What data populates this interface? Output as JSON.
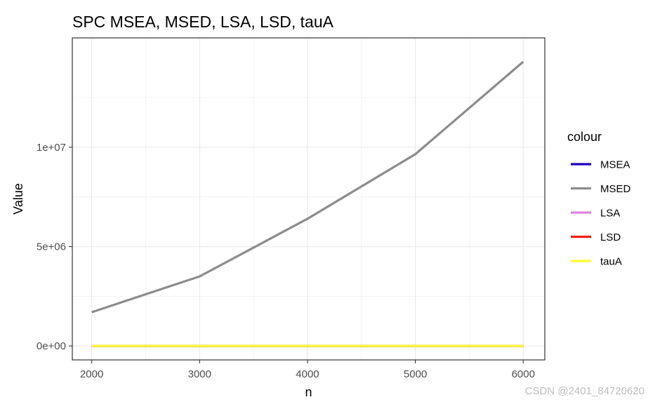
{
  "chart_data": {
    "type": "line",
    "title": "SPC MSEA, MSED, LSA, LSD, tauA",
    "xlabel": "n",
    "ylabel": "Value",
    "x": [
      2000,
      3000,
      4000,
      5000,
      6000
    ],
    "xlim": [
      1820,
      6200
    ],
    "ylim": [
      -700000,
      15500000
    ],
    "x_ticks": [
      2000,
      3000,
      4000,
      5000,
      6000
    ],
    "x_tick_labels": [
      "2000",
      "3000",
      "4000",
      "5000",
      "6000"
    ],
    "y_ticks": [
      0,
      5000000,
      10000000
    ],
    "y_tick_labels": [
      "0e+00",
      "5e+06",
      "1e+07"
    ],
    "grid": true,
    "legend_title": "colour",
    "legend_position": "right",
    "series": [
      {
        "name": "MSEA",
        "color": "#1c00bd",
        "values": [
          0,
          0,
          0,
          0,
          0
        ]
      },
      {
        "name": "MSED",
        "color": "#8c8c8c",
        "values": [
          1700000,
          3500000,
          6400000,
          9650000,
          14300000
        ]
      },
      {
        "name": "LSA",
        "color": "#e083e0",
        "values": [
          0,
          0,
          0,
          0,
          0
        ]
      },
      {
        "name": "LSD",
        "color": "#ee2211",
        "values": [
          0,
          0,
          0,
          0,
          0
        ]
      },
      {
        "name": "tauA",
        "color": "#ffff33",
        "values": [
          0,
          0,
          0,
          0,
          0
        ]
      }
    ]
  },
  "watermark": "CSDN @2401_84720620"
}
